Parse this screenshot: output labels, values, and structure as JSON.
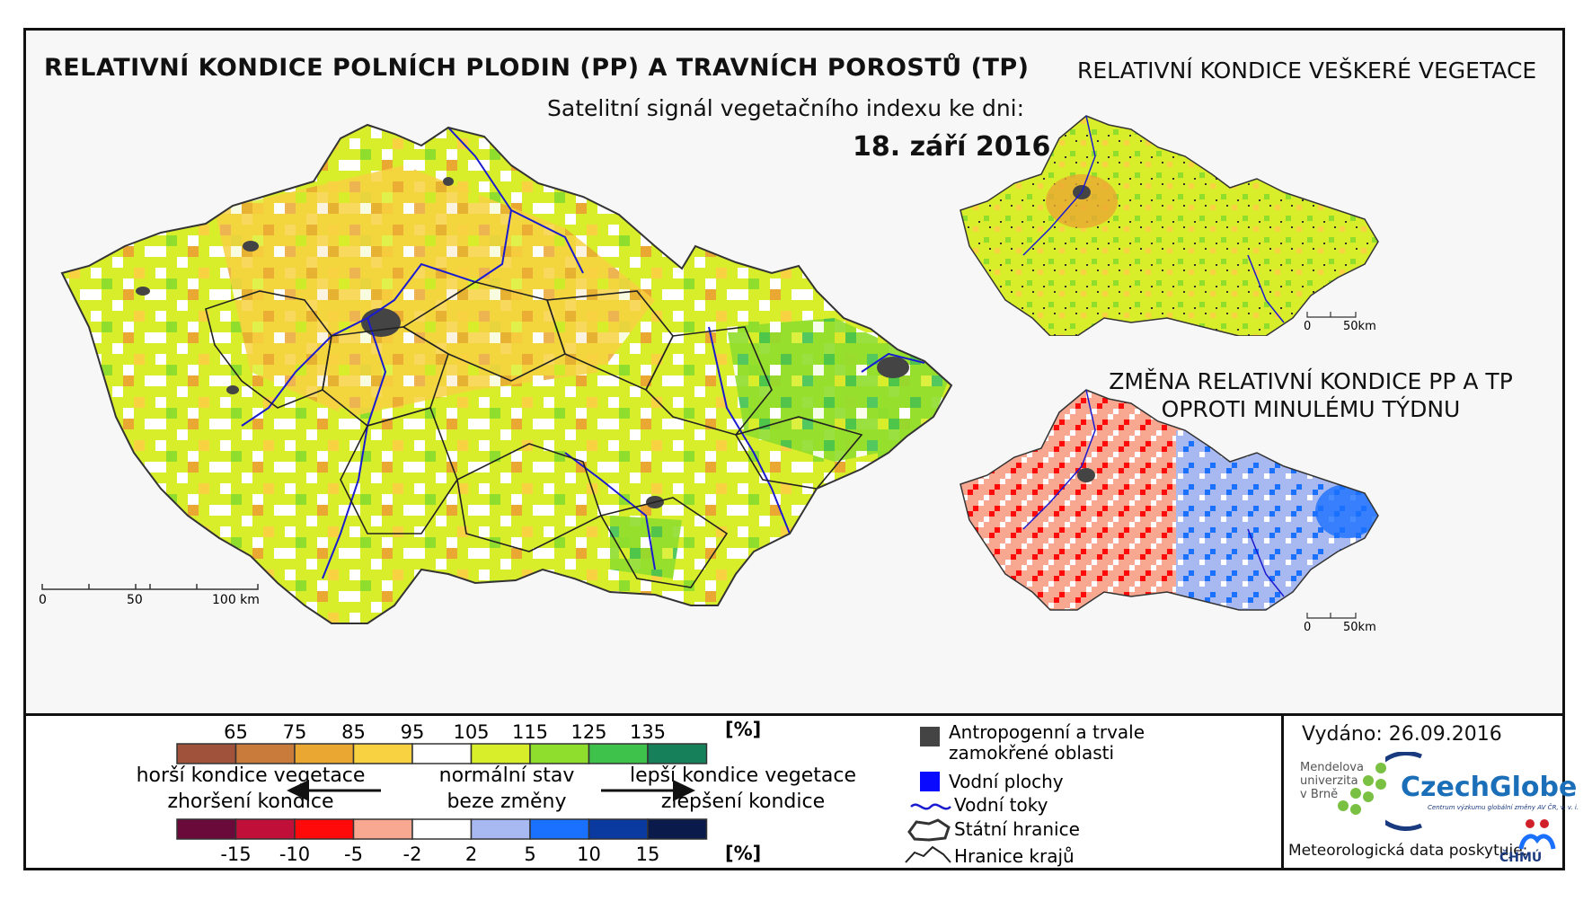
{
  "titles": {
    "main": "RELATIVNÍ KONDICE POLNÍCH PLODIN (PP) A TRAVNÍCH POROSTŮ (TP)",
    "subtitle": "Satelitní signál vegetačního indexu ke dni:",
    "date": "18. září 2016",
    "vegetation": "RELATIVNÍ KONDICE VEŠKERÉ VEGETACE",
    "change_line1": "ZMĚNA RELATIVNÍ KONDICE PP A TP",
    "change_line2": "OPROTI MINULÉMU TÝDNU"
  },
  "scales": {
    "main": {
      "zero": "0",
      "mid": "50",
      "end": "100 km"
    },
    "small_top": {
      "zero": "0",
      "end": "50km"
    },
    "small_bottom": {
      "zero": "0",
      "end": "50km"
    }
  },
  "legend": {
    "condition_labels": [
      "65",
      "75",
      "85",
      "95",
      "105",
      "115",
      "125",
      "135"
    ],
    "condition_unit": "[%]",
    "condition_colors": [
      "#a0523a",
      "#c87b3a",
      "#eaa732",
      "#f8d240",
      "#ffffff",
      "#d9ee2a",
      "#8fdd2c",
      "#3fc24c",
      "#15805a"
    ],
    "change_labels": [
      "-15",
      "-10",
      "-5",
      "-2",
      "2",
      "5",
      "10",
      "15"
    ],
    "change_unit": "[%]",
    "change_colors": [
      "#6a0a3a",
      "#c0103a",
      "#ff0a0a",
      "#f8a890",
      "#ffffff",
      "#a8b8f0",
      "#1a70ff",
      "#0a3aa0",
      "#0a1a4a"
    ],
    "worse_line1": "horší kondice vegetace",
    "worse_line2": "zhoršení kondice",
    "normal_line1": "normální stav",
    "normal_line2": "beze změny",
    "better_line1": "lepší kondice vegetace",
    "better_line2": "zlepšení kondice"
  },
  "symbols": {
    "anthropogenic_line1": "Antropogenní a trvale",
    "anthropogenic_line2": "zamokřené oblasti",
    "water_areas": "Vodní plochy",
    "rivers": "Vodní toky",
    "state_border": "Státní hranice",
    "region_border": "Hranice krajů",
    "anthropogenic_color": "#444444",
    "water_color": "#0a0aff"
  },
  "footer": {
    "issued": "Vydáno: 26.09.2016",
    "mendel_line1": "Mendelova",
    "mendel_line2": "univerzita",
    "mendel_line3": "v Brně",
    "czechglobe": "CzechGlobe",
    "czechglobe_sub": "Centrum výzkumu globální změny AV ČR, v. v. i.",
    "credit": "Meteorologická data poskytuje:",
    "chmu": "ČHMÚ"
  }
}
